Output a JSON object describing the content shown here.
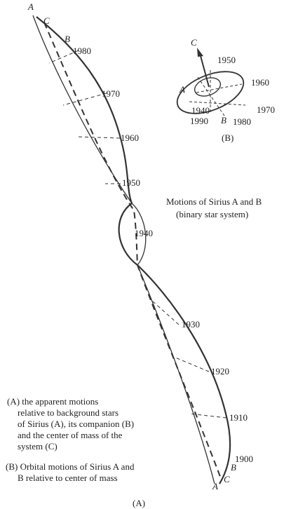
{
  "panel_a": {
    "labels": [
      "A",
      "C",
      "B",
      "1980",
      "1970",
      "1960",
      "1950",
      "1940",
      "1930",
      "1920",
      "1910",
      "1900",
      "B",
      "C",
      "A"
    ],
    "caption": "(A)"
  },
  "panel_b": {
    "labels": [
      "C",
      "1950",
      "1960",
      "A",
      "1940",
      "1990",
      "1970",
      "B",
      "1980"
    ],
    "caption": "(B)"
  },
  "title": [
    "Motions of Sirius A and B",
    "(binary star system)"
  ],
  "legend": {
    "a": [
      "(A) the apparent motions",
      "relative to background stars",
      "of Sirius (A), its companion (B)",
      "and the center of mass of the",
      "system (C)"
    ],
    "b": [
      "(B) Orbital motions of Sirius A and",
      "B relative to center of mass"
    ]
  }
}
